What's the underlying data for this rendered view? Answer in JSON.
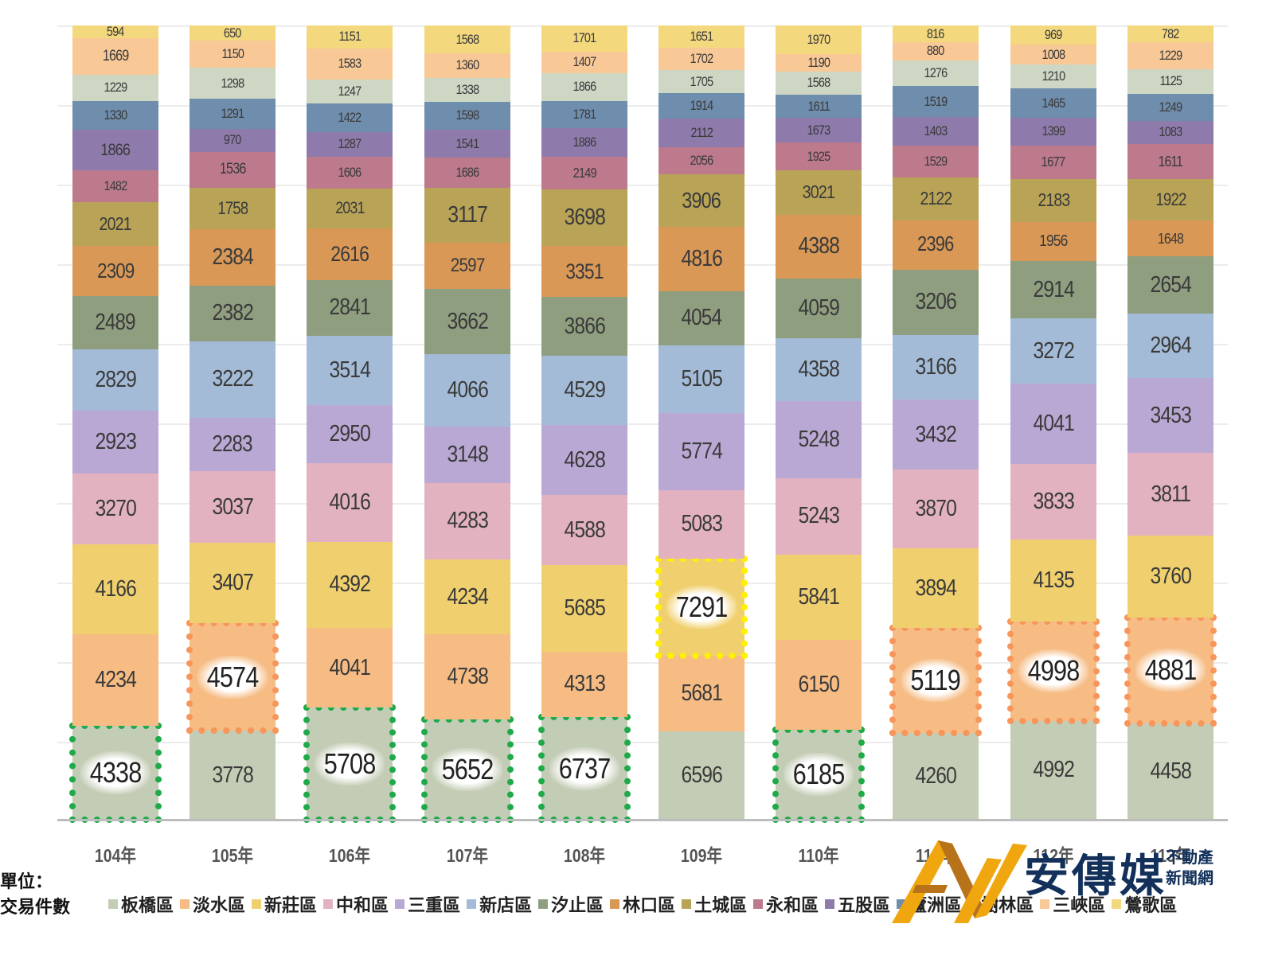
{
  "chart_data": {
    "type": "bar",
    "stacked": true,
    "normalized_100_percent": true,
    "title": "",
    "xlabel": "",
    "ylabel": "",
    "unit_label": "單位：交易件數",
    "categories": [
      "104年",
      "105年",
      "106年",
      "107年",
      "108年",
      "109年",
      "110年",
      "111年",
      "112年",
      "113年"
    ],
    "legend_position": "bottom",
    "grid": true,
    "series": [
      {
        "name": "板橋區",
        "color": "#c3ccb4",
        "values": [
          4338,
          3778,
          5708,
          5652,
          6737,
          6596,
          6185,
          4260,
          4992,
          4458
        ]
      },
      {
        "name": "淡水區",
        "color": "#f6bc84",
        "values": [
          4234,
          4574,
          4041,
          4738,
          4313,
          5681,
          6150,
          5119,
          4998,
          4881
        ]
      },
      {
        "name": "新莊區",
        "color": "#f0d06e",
        "values": [
          4166,
          3407,
          4392,
          4234,
          5685,
          7291,
          5841,
          3894,
          4135,
          3760
        ]
      },
      {
        "name": "中和區",
        "color": "#e2b2c0",
        "values": [
          3270,
          3037,
          4016,
          4283,
          4588,
          5083,
          5243,
          3870,
          3833,
          3811
        ]
      },
      {
        "name": "三重區",
        "color": "#b9a8d3",
        "values": [
          2923,
          2283,
          2950,
          3148,
          4628,
          5774,
          5248,
          3432,
          4041,
          3453
        ]
      },
      {
        "name": "新店區",
        "color": "#a3bbd6",
        "values": [
          2829,
          3222,
          3514,
          4066,
          4529,
          5105,
          4358,
          3166,
          3272,
          2964
        ]
      },
      {
        "name": "汐止區",
        "color": "#909e80",
        "values": [
          2489,
          2382,
          2841,
          3662,
          3866,
          4054,
          4059,
          3206,
          2914,
          2654
        ]
      },
      {
        "name": "林口區",
        "color": "#d99856",
        "values": [
          2309,
          2384,
          2616,
          2597,
          3351,
          4816,
          4388,
          2396,
          1956,
          1648
        ]
      },
      {
        "name": "土城區",
        "color": "#b8a356",
        "values": [
          2021,
          1758,
          2031,
          3117,
          3698,
          3906,
          3021,
          2122,
          2183,
          1922
        ]
      },
      {
        "name": "永和區",
        "color": "#bc7a8c",
        "values": [
          1482,
          1536,
          1606,
          1686,
          2149,
          2056,
          1925,
          1529,
          1677,
          1611
        ]
      },
      {
        "name": "五股區",
        "color": "#8e7aab",
        "values": [
          1866,
          970,
          1287,
          1541,
          1886,
          2112,
          1673,
          1403,
          1399,
          1083
        ]
      },
      {
        "name": "蘆洲區",
        "color": "#6f8dac",
        "values": [
          1330,
          1291,
          1422,
          1598,
          1781,
          1914,
          1611,
          1519,
          1465,
          1249
        ]
      },
      {
        "name": "樹林區",
        "color": "#cdd7c4",
        "values": [
          1229,
          1298,
          1247,
          1338,
          1866,
          1705,
          1568,
          1276,
          1210,
          1125
        ]
      },
      {
        "name": "三峽區",
        "color": "#f8c896",
        "values": [
          1669,
          1150,
          1583,
          1360,
          1407,
          1702,
          1190,
          880,
          1008,
          1229
        ]
      },
      {
        "name": "鶯歌區",
        "color": "#f3d87e",
        "values": [
          594,
          650,
          1151,
          1568,
          1701,
          1651,
          1970,
          816,
          969,
          782
        ]
      }
    ],
    "annotations": [
      {
        "series": "板橋區",
        "category": "104年",
        "value": 4338,
        "style": "green-dotted-box"
      },
      {
        "series": "淡水區",
        "category": "105年",
        "value": 4574,
        "style": "orange-dotted-box"
      },
      {
        "series": "板橋區",
        "category": "106年",
        "value": 5708,
        "style": "green-dotted-box"
      },
      {
        "series": "板橋區",
        "category": "107年",
        "value": 5652,
        "style": "green-dotted-box"
      },
      {
        "series": "板橋區",
        "category": "108年",
        "value": 6737,
        "style": "green-dotted-box"
      },
      {
        "series": "新莊區",
        "category": "109年",
        "value": 7291,
        "style": "yellow-dotted-box"
      },
      {
        "series": "板橋區",
        "category": "110年",
        "value": 6185,
        "style": "green-dotted-box"
      },
      {
        "series": "淡水區",
        "category": "111年",
        "value": 5119,
        "style": "orange-dotted-box"
      },
      {
        "series": "淡水區",
        "category": "112年",
        "value": 4998,
        "style": "orange-dotted-box"
      },
      {
        "series": "淡水區",
        "category": "113年",
        "value": 4881,
        "style": "orange-dotted-box"
      }
    ],
    "highlight_colors": {
      "green-dotted-box": "#1faa4a",
      "orange-dotted-box": "#f7955a",
      "yellow-dotted-box": "#fff200"
    }
  },
  "unit": {
    "line1": "單位：",
    "line2": "交易件數"
  },
  "logo": {
    "brand": "安傳媒",
    "sub1": "不動產",
    "sub2": "新聞網",
    "gold": "#f0a70f",
    "brown": "#b8731a",
    "navy": "#12305a"
  }
}
